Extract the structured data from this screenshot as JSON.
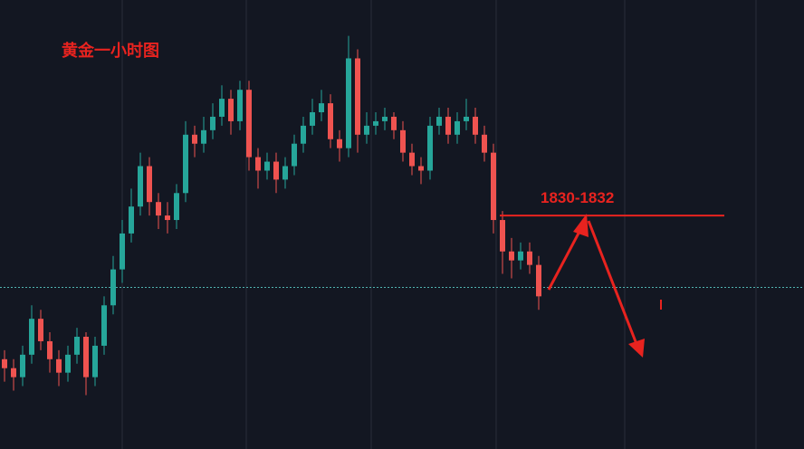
{
  "chart_data": {
    "type": "candlestick",
    "title": "黄金一小时图",
    "ylim": [
      1805,
      1855
    ],
    "up_color": "#26a69a",
    "down_color": "#ef5350",
    "open": [
      1815,
      1814,
      1813,
      1815.5,
      1819.5,
      1817,
      1815,
      1813.5,
      1815.5,
      1817.5,
      1813,
      1816.5,
      1821,
      1825,
      1829,
      1832,
      1836.5,
      1832.5,
      1831,
      1830.5,
      1833.5,
      1840,
      1839,
      1840.5,
      1842,
      1844,
      1841.5,
      1845,
      1837.5,
      1836,
      1837,
      1835,
      1836.5,
      1839,
      1841,
      1842.5,
      1843.5,
      1839.5,
      1838.5,
      1848.5,
      1840,
      1841,
      1841.5,
      1842,
      1840.5,
      1838,
      1836.5,
      1836,
      1841,
      1842,
      1840,
      1841.5,
      1842,
      1840,
      1838,
      1830.5,
      1827,
      1826,
      1827,
      1825.5
    ],
    "high": [
      1816,
      1815,
      1816.5,
      1821,
      1820.5,
      1818,
      1816,
      1816.5,
      1818.5,
      1818,
      1817.5,
      1822,
      1826.5,
      1830.5,
      1834,
      1838,
      1837.5,
      1833.5,
      1832.5,
      1834.5,
      1841.5,
      1841,
      1842,
      1843.5,
      1845.5,
      1845,
      1846,
      1846,
      1838.5,
      1838,
      1838,
      1837.5,
      1840,
      1842,
      1844,
      1845,
      1844.5,
      1840.5,
      1851,
      1849.5,
      1842.5,
      1842.5,
      1843,
      1842.5,
      1841.5,
      1839,
      1837.5,
      1842,
      1843,
      1843,
      1842.5,
      1844,
      1843,
      1841,
      1839,
      1831.5,
      1828.5,
      1828,
      1828,
      1826.5
    ],
    "low": [
      1812.5,
      1811.5,
      1812,
      1814.5,
      1816,
      1813.5,
      1812,
      1812.5,
      1814.5,
      1811,
      1812,
      1815.5,
      1820,
      1823.5,
      1828,
      1831,
      1831,
      1829.5,
      1829,
      1829.5,
      1832.5,
      1837.5,
      1838,
      1839.5,
      1841,
      1840,
      1840.5,
      1836,
      1834,
      1835,
      1833.5,
      1834,
      1835.5,
      1838,
      1840,
      1841.5,
      1838.5,
      1837,
      1837.5,
      1838,
      1839,
      1840,
      1840.5,
      1839.5,
      1837,
      1835.5,
      1834.5,
      1835,
      1840,
      1839,
      1839,
      1840.5,
      1839,
      1837,
      1829,
      1824.5,
      1824,
      1825,
      1824.5,
      1820.5
    ],
    "close": [
      1814,
      1813,
      1815.5,
      1819.5,
      1817,
      1815,
      1813.5,
      1815.5,
      1817.5,
      1813,
      1816.5,
      1821,
      1825,
      1829,
      1832,
      1836.5,
      1832.5,
      1831,
      1830.5,
      1833.5,
      1840,
      1839,
      1840.5,
      1842,
      1844,
      1841.5,
      1845,
      1837.5,
      1836,
      1837,
      1835,
      1836.5,
      1839,
      1841,
      1842.5,
      1843.5,
      1839.5,
      1838.5,
      1848.5,
      1840,
      1841,
      1841.5,
      1842,
      1840.5,
      1838,
      1836.5,
      1836,
      1841,
      1842,
      1840,
      1841.5,
      1842,
      1840,
      1838,
      1830.5,
      1827,
      1826,
      1827,
      1825.5,
      1822
    ],
    "current_price": 1823,
    "current_price_color": "#4fb3b0",
    "level": {
      "value": 1831,
      "label": "1830-1832",
      "color": "#e8231f"
    }
  }
}
